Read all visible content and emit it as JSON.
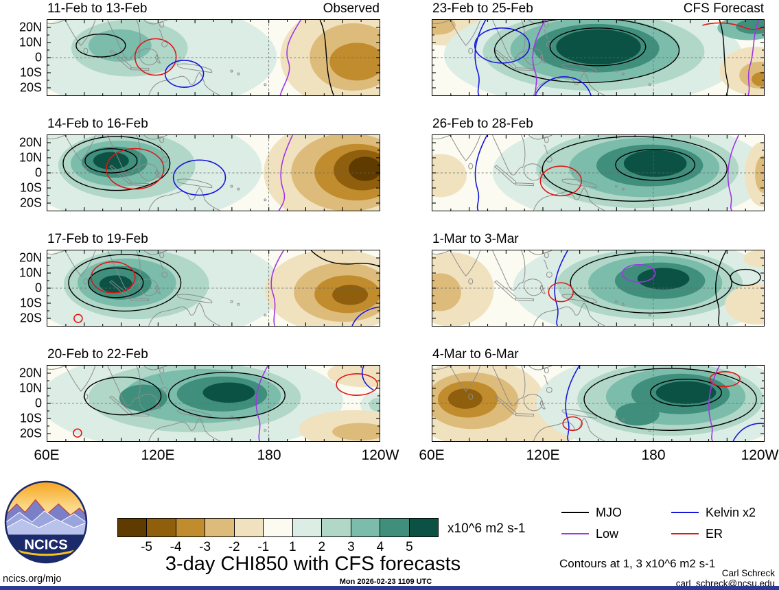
{
  "chart_data": {
    "type": "heatmap",
    "title": "3-day CHI850 with CFS forecasts",
    "variable": "CHI850 velocity potential anomalies with equatorial wave contours",
    "units": "x10^6 m2 s-1",
    "column_labels": [
      "Observed",
      "CFS Forecast"
    ],
    "x_axis": {
      "ticks": [
        "60E",
        "120E",
        "180",
        "120W"
      ],
      "range_deg_east": [
        60,
        240
      ]
    },
    "y_axis": {
      "ticks": [
        "20N",
        "10N",
        "0",
        "10S",
        "20S"
      ],
      "range_deg_north": [
        -25,
        25
      ]
    },
    "colorbar": {
      "tick_labels": [
        "-5",
        "-4",
        "-3",
        "-2",
        "-1",
        "1",
        "2",
        "3",
        "4",
        "5"
      ],
      "colors": [
        "#5f3b00",
        "#8f5f0e",
        "#c08c2e",
        "#ddbb7a",
        "#f0e2bf",
        "#fbfbf2",
        "#dcede5",
        "#b0d7c8",
        "#7cbcab",
        "#3f8f7c",
        "#0c5244"
      ],
      "label": "x10^6 m2 s-1"
    },
    "legend": {
      "items": [
        {
          "label": "MJO",
          "color": "#000000"
        },
        {
          "label": "Low",
          "color": "#a035e6"
        },
        {
          "label": "Kelvin x2",
          "color": "#1515dd"
        },
        {
          "label": "ER",
          "color": "#e01616"
        }
      ]
    },
    "contours_note": "Contours at 1, 3 x10^6 m2 s-1",
    "panels": [
      {
        "title": "11-Feb to 13-Feb",
        "column": "Observed",
        "positive_center": {
          "lon": "95E",
          "lat": "5N",
          "value": 2
        },
        "negative_center": {
          "lon": "155W",
          "lat": "5S",
          "value": -3
        }
      },
      {
        "title": "14-Feb to 16-Feb",
        "column": "Observed",
        "positive_center": {
          "lon": "90E",
          "lat": "8N",
          "value": 5
        },
        "negative_center": {
          "lon": "130W",
          "lat": "0",
          "value": -5
        }
      },
      {
        "title": "17-Feb to 19-Feb",
        "column": "Observed",
        "positive_center": {
          "lon": "95E",
          "lat": "3N",
          "value": 5
        },
        "negative_center": {
          "lon": "145W",
          "lat": "5S",
          "value": -4
        }
      },
      {
        "title": "20-Feb to 22-Feb",
        "column": "Observed",
        "positive_center": {
          "lon": "135E",
          "lat": "5N",
          "value": 5
        },
        "negative_center": {
          "lon": "130W",
          "lat": "15S",
          "value": -1
        }
      },
      {
        "title": "23-Feb to 25-Feb",
        "column": "CFS Forecast",
        "positive_center": {
          "lon": "140E",
          "lat": "5N",
          "value": 5
        },
        "negative_center": {
          "lon": "120W",
          "lat": "10S",
          "value": -3
        }
      },
      {
        "title": "26-Feb to 28-Feb",
        "column": "CFS Forecast",
        "positive_center": {
          "lon": "165E",
          "lat": "3N",
          "value": 5
        },
        "negative_center": {
          "lon": "120W",
          "lat": "0",
          "value": -2
        }
      },
      {
        "title": "1-Mar to 3-Mar",
        "column": "CFS Forecast",
        "positive_center": {
          "lon": "170E",
          "lat": "0",
          "value": 5
        },
        "negative_center": {
          "lon": "65E",
          "lat": "0",
          "value": -1
        }
      },
      {
        "title": "4-Mar to 6-Mar",
        "column": "CFS Forecast",
        "positive_center": {
          "lon": "175E",
          "lat": "5N",
          "value": 5
        },
        "negative_center": {
          "lon": "75E",
          "lat": "3S",
          "value": -4
        }
      }
    ]
  },
  "footer": {
    "site": "ncics.org/mjo",
    "timestamp": "Mon 2026-02-23 1109 UTC",
    "credit_name": "Carl Schreck",
    "credit_email": "carl_schreck@ncsu.edu"
  },
  "logo": {
    "text": "NCICS"
  }
}
